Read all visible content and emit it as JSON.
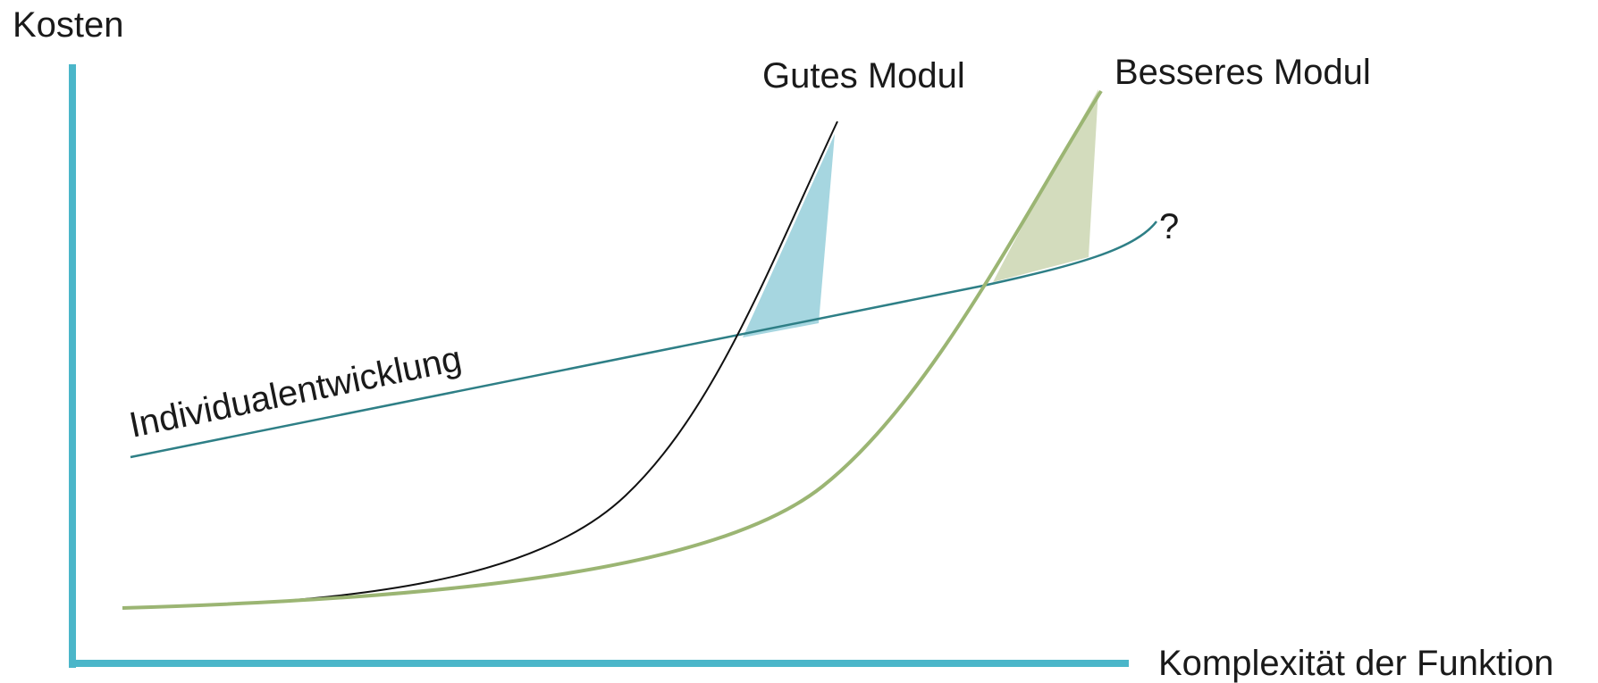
{
  "labels": {
    "y_axis": "Kosten",
    "x_axis": "Komplexität der Funktion",
    "individual": "Individualentwicklung",
    "good_module": "Gutes Modul",
    "better_module": "Besseres Modul",
    "question": "?"
  },
  "colors": {
    "axis": "#4bb6c9",
    "individual_line": "#2e7f86",
    "good_curve": "#111111",
    "better_curve": "#9bb573",
    "good_area": "#a6d6e0",
    "better_area": "#d3dcbd",
    "text": "#1a1a1a"
  }
}
